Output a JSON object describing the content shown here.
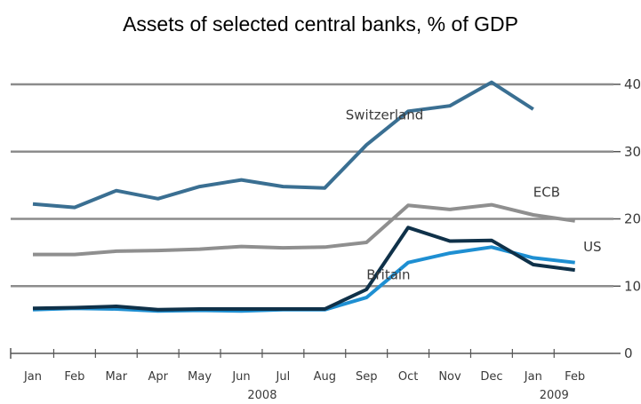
{
  "chart_data": {
    "type": "line",
    "title": "Assets of selected central banks, % of GDP",
    "xlabel": "",
    "ylabel": "",
    "categories": [
      "Jan",
      "Feb",
      "Mar",
      "Apr",
      "May",
      "Jun",
      "Jul",
      "Aug",
      "Sep",
      "Oct",
      "Nov",
      "Dec",
      "Jan",
      "Feb"
    ],
    "year_labels": [
      {
        "label": "2008",
        "at_index": 5.5
      },
      {
        "label": "2009",
        "at_index": 12.5
      }
    ],
    "ylim": [
      0,
      40
    ],
    "yticks": [
      0,
      10,
      20,
      30,
      40
    ],
    "y_axis_side": "right",
    "grid": true,
    "legend": "direct labels on lines",
    "series": [
      {
        "name": "Switzerland",
        "color": "#3a6f92",
        "values": [
          22.2,
          21.7,
          24.2,
          23.0,
          24.8,
          25.8,
          24.8,
          24.6,
          31.0,
          36.0,
          36.8,
          40.3,
          36.3,
          null
        ],
        "label_at": [
          7.5,
          34.8
        ]
      },
      {
        "name": "ECB",
        "color": "#8f8f8f",
        "values": [
          14.7,
          14.7,
          15.2,
          15.3,
          15.5,
          15.9,
          15.7,
          15.8,
          16.5,
          22.0,
          21.4,
          22.1,
          20.6,
          19.7
        ],
        "label_at": [
          12.0,
          23.3
        ]
      },
      {
        "name": "US",
        "color": "#1e8fd2",
        "values": [
          6.5,
          6.7,
          6.6,
          6.3,
          6.4,
          6.3,
          6.5,
          6.5,
          8.3,
          13.5,
          14.9,
          15.8,
          14.2,
          13.5
        ],
        "label_at": [
          13.2,
          15.2
        ]
      },
      {
        "name": "Britain",
        "color": "#0f3149",
        "values": [
          6.7,
          6.8,
          7.0,
          6.5,
          6.6,
          6.6,
          6.6,
          6.6,
          9.5,
          18.7,
          16.7,
          16.8,
          13.2,
          12.4
        ],
        "label_at": [
          8.0,
          11.0
        ]
      }
    ]
  },
  "colors": {
    "grid": "#8c8c8c",
    "axis": "#555555"
  }
}
